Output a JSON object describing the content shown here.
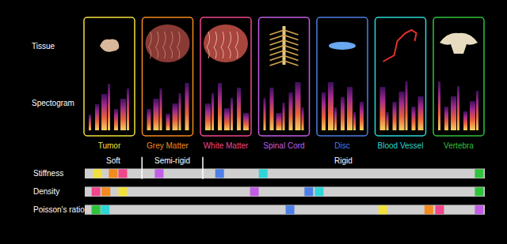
{
  "row_labels": [
    "Tissue",
    "Spectogram"
  ],
  "tissues": [
    {
      "name": "Tumor",
      "color": "#f2e03c"
    },
    {
      "name": "Grey Matter",
      "color": "#f28a1e"
    },
    {
      "name": "White Matter",
      "color": "#f0468a"
    },
    {
      "name": "Spinal Cord",
      "color": "#c25ee6"
    },
    {
      "name": "Disc",
      "color": "#4d7fe6"
    },
    {
      "name": "Blood Vessel",
      "color": "#2fd6d6"
    },
    {
      "name": "Vertebra",
      "color": "#2fc23c"
    }
  ],
  "chart_data": {
    "type": "strip",
    "xlim": [
      0,
      100
    ],
    "tick_labels": false,
    "zones": [
      {
        "label": "Soft",
        "from": 0,
        "to": 14.3
      },
      {
        "label": "Semi-rigid",
        "from": 14.3,
        "to": 29.5
      },
      {
        "label": "Rigid",
        "from": 29.5,
        "to": 100
      }
    ],
    "series": [
      {
        "name": "Stiffness",
        "values": [
          3.2,
          7.1,
          9.5,
          18.6,
          33.7,
          44.6,
          98.6
        ]
      },
      {
        "name": "Density",
        "values": [
          9.5,
          5.3,
          2.8,
          42.4,
          56.0,
          58.6,
          98.6
        ]
      },
      {
        "name": "Poisson's ratio",
        "values": [
          74.5,
          86.0,
          88.7,
          98.6,
          51.3,
          5.1,
          2.8
        ]
      }
    ]
  }
}
